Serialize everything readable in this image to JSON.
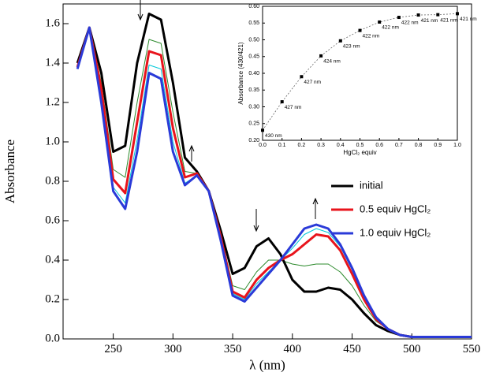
{
  "chart_data": [
    {
      "type": "line",
      "x_label": "λ (nm)",
      "y_label": "Absorbance",
      "x": [
        220,
        230,
        240,
        250,
        260,
        270,
        280,
        290,
        300,
        310,
        320,
        330,
        340,
        350,
        360,
        370,
        380,
        390,
        400,
        410,
        420,
        430,
        440,
        450,
        460,
        470,
        480,
        490,
        500,
        510,
        520,
        530,
        540,
        550
      ],
      "xlim": [
        208,
        550
      ],
      "xticks": [
        250,
        300,
        350,
        400,
        450,
        500,
        550
      ],
      "ylim": [
        0,
        1.7
      ],
      "yticks": [
        {
          "value": 0,
          "label": "0.0"
        },
        {
          "value": 0.2,
          "label": "0.2"
        },
        {
          "value": 0.4,
          "label": "0.4"
        },
        {
          "value": 0.6,
          "label": "0.6"
        },
        {
          "value": 0.8,
          "label": "0.8"
        },
        {
          "value": 1,
          "label": "1.0"
        },
        {
          "value": 1.2,
          "label": "1.2"
        },
        {
          "value": 1.4,
          "label": "1.4"
        },
        {
          "value": 1.6,
          "label": "1.6"
        }
      ],
      "series": [
        {
          "color": "#2e8b2e",
          "values": [
            1.39,
            1.58,
            1.3,
            0.86,
            0.82,
            1.2,
            1.52,
            1.5,
            1.15,
            0.85,
            0.84,
            0.75,
            0.53,
            0.27,
            0.25,
            0.34,
            0.4,
            0.4,
            0.38,
            0.37,
            0.38,
            0.38,
            0.34,
            0.27,
            0.17,
            0.09,
            0.05,
            0.02,
            0.01,
            0.01,
            0.01,
            0.01,
            0.01,
            0.01
          ]
        },
        {
          "color": "#00c8d8",
          "values": [
            1.37,
            1.58,
            1.23,
            0.77,
            0.69,
            1.01,
            1.39,
            1.37,
            1.0,
            0.79,
            0.83,
            0.75,
            0.51,
            0.23,
            0.2,
            0.28,
            0.34,
            0.4,
            0.46,
            0.53,
            0.56,
            0.54,
            0.47,
            0.35,
            0.21,
            0.11,
            0.05,
            0.02,
            0.01,
            0.01,
            0.01,
            0.01,
            0.01,
            0.01
          ]
        },
        {
          "name": "initial",
          "color": "#000000",
          "values": [
            1.4,
            1.58,
            1.35,
            0.95,
            0.98,
            1.4,
            1.65,
            1.62,
            1.3,
            0.92,
            0.85,
            0.75,
            0.55,
            0.33,
            0.36,
            0.47,
            0.51,
            0.43,
            0.3,
            0.24,
            0.24,
            0.26,
            0.25,
            0.2,
            0.13,
            0.07,
            0.04,
            0.02,
            0.01,
            0.01,
            0.01,
            0.01,
            0.01,
            0.01
          ]
        },
        {
          "name": "0.5 equiv  HgCl₂",
          "color": "#e8141c",
          "values": [
            1.38,
            1.58,
            1.27,
            0.81,
            0.74,
            1.1,
            1.46,
            1.44,
            1.07,
            0.82,
            0.84,
            0.75,
            0.52,
            0.24,
            0.21,
            0.3,
            0.36,
            0.4,
            0.43,
            0.48,
            0.53,
            0.52,
            0.45,
            0.33,
            0.2,
            0.1,
            0.05,
            0.02,
            0.01,
            0.01,
            0.01,
            0.01,
            0.01,
            0.01
          ]
        },
        {
          "name": "1.0 equiv  HgCl₂",
          "color": "#2a3ad8",
          "values": [
            1.37,
            1.58,
            1.2,
            0.75,
            0.66,
            0.95,
            1.35,
            1.32,
            0.95,
            0.78,
            0.83,
            0.75,
            0.5,
            0.22,
            0.19,
            0.26,
            0.33,
            0.4,
            0.48,
            0.56,
            0.58,
            0.56,
            0.48,
            0.36,
            0.22,
            0.11,
            0.05,
            0.02,
            0.01,
            0.01,
            0.01,
            0.01,
            0.01,
            0.01
          ]
        }
      ]
    },
    {
      "type": "scatter",
      "x_label": "HgCl₂ equiv",
      "y_label": "Absorbance (430/421)",
      "x": [
        0,
        0.1,
        0.2,
        0.3,
        0.4,
        0.5,
        0.6,
        0.7,
        0.8,
        0.9,
        1.0
      ],
      "values": [
        0.23,
        0.315,
        0.39,
        0.452,
        0.497,
        0.528,
        0.553,
        0.567,
        0.574,
        0.575,
        0.578
      ],
      "point_labels": [
        "430 nm",
        "427 nm",
        "427 nm",
        "424 nm",
        "423 nm",
        "422 nm",
        "422 nm",
        "422 nm",
        "421 nm",
        "421 nm",
        "421 nm"
      ],
      "color": "#000000",
      "xlim": [
        0,
        1
      ],
      "xticks": [
        {
          "value": 0,
          "label": "0.0"
        },
        {
          "value": 0.1,
          "label": "0.1"
        },
        {
          "value": 0.2,
          "label": "0.2"
        },
        {
          "value": 0.3,
          "label": "0.3"
        },
        {
          "value": 0.4,
          "label": "0.4"
        },
        {
          "value": 0.5,
          "label": "0.5"
        },
        {
          "value": 0.6,
          "label": "0.6"
        },
        {
          "value": 0.7,
          "label": "0.7"
        },
        {
          "value": 0.8,
          "label": "0.8"
        },
        {
          "value": 0.9,
          "label": "0.9"
        },
        {
          "value": 1,
          "label": "1.0"
        }
      ],
      "ylim": [
        0.2,
        0.6
      ],
      "yticks": [
        {
          "value": 0.2,
          "label": "0.20"
        },
        {
          "value": 0.25,
          "label": "0.25"
        },
        {
          "value": 0.3,
          "label": "0.30"
        },
        {
          "value": 0.35,
          "label": "0.35"
        },
        {
          "value": 0.4,
          "label": "0.40"
        },
        {
          "value": 0.45,
          "label": "0.45"
        },
        {
          "value": 0.5,
          "label": "0.50"
        },
        {
          "value": 0.55,
          "label": "0.55"
        },
        {
          "value": 0.6,
          "label": "0.60"
        }
      ]
    }
  ]
}
